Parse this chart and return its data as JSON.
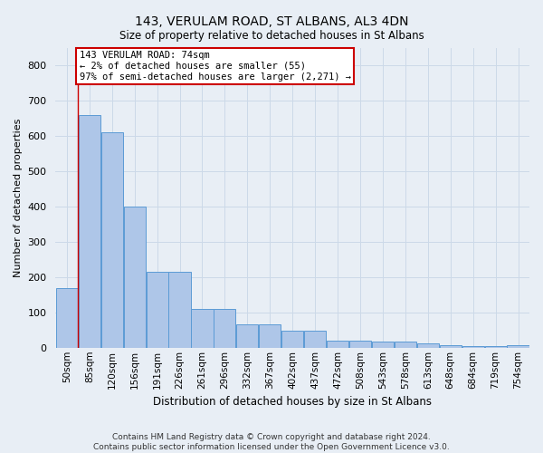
{
  "title": "143, VERULAM ROAD, ST ALBANS, AL3 4DN",
  "subtitle": "Size of property relative to detached houses in St Albans",
  "xlabel": "Distribution of detached houses by size in St Albans",
  "ylabel": "Number of detached properties",
  "footer_line1": "Contains HM Land Registry data © Crown copyright and database right 2024.",
  "footer_line2": "Contains public sector information licensed under the Open Government Licence v3.0.",
  "bin_labels": [
    "50sqm",
    "85sqm",
    "120sqm",
    "156sqm",
    "191sqm",
    "226sqm",
    "261sqm",
    "296sqm",
    "332sqm",
    "367sqm",
    "402sqm",
    "437sqm",
    "472sqm",
    "508sqm",
    "543sqm",
    "578sqm",
    "613sqm",
    "648sqm",
    "684sqm",
    "719sqm",
    "754sqm"
  ],
  "bar_values": [
    170,
    660,
    610,
    400,
    215,
    215,
    110,
    110,
    65,
    65,
    47,
    47,
    20,
    20,
    17,
    17,
    13,
    7,
    5,
    5,
    7
  ],
  "bar_color": "#aec6e8",
  "bar_edge_color": "#5b9bd5",
  "ylim": [
    0,
    850
  ],
  "yticks": [
    0,
    100,
    200,
    300,
    400,
    500,
    600,
    700,
    800
  ],
  "annotation_text": "143 VERULAM ROAD: 74sqm\n← 2% of detached houses are smaller (55)\n97% of semi-detached houses are larger (2,271) →",
  "annotation_box_color": "#ffffff",
  "annotation_box_edge": "#cc0000",
  "property_bin_index": 0,
  "grid_color": "#ccd9e8",
  "background_color": "#e8eef5"
}
